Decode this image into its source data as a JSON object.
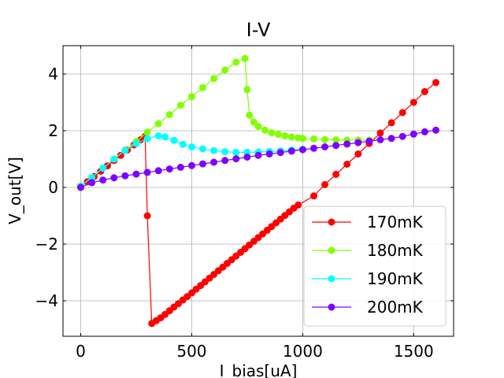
{
  "chart_data": {
    "type": "line",
    "title": "I-V",
    "xlabel": "I_bias[uA]",
    "ylabel": "V_out[V]",
    "xlim": [
      -80,
      1680
    ],
    "ylim": [
      -5.25,
      5.0
    ],
    "xticks": [
      0,
      500,
      1000,
      1500
    ],
    "yticks": [
      -4,
      -2,
      0,
      2,
      4
    ],
    "xtick_labels": [
      "0",
      "500",
      "1000",
      "1500"
    ],
    "ytick_labels": [
      "−4",
      "−2",
      "0",
      "2",
      "4"
    ],
    "grid": true,
    "legend_position": "lower-right",
    "series": [
      {
        "name": "170mK",
        "color": "#ff0000",
        "points": [
          [
            0,
            0.05
          ],
          [
            30,
            0.2
          ],
          [
            60,
            0.38
          ],
          [
            90,
            0.57
          ],
          [
            120,
            0.76
          ],
          [
            150,
            0.95
          ],
          [
            180,
            1.13
          ],
          [
            210,
            1.32
          ],
          [
            240,
            1.5
          ],
          [
            270,
            1.68
          ],
          [
            290,
            1.8
          ],
          [
            300,
            -1.0
          ],
          [
            320,
            -4.8
          ],
          [
            340,
            -4.7
          ],
          [
            360,
            -4.6
          ],
          [
            380,
            -4.48
          ],
          [
            400,
            -4.35
          ],
          [
            420,
            -4.22
          ],
          [
            440,
            -4.1
          ],
          [
            460,
            -3.97
          ],
          [
            480,
            -3.85
          ],
          [
            500,
            -3.72
          ],
          [
            520,
            -3.59
          ],
          [
            540,
            -3.46
          ],
          [
            560,
            -3.33
          ],
          [
            580,
            -3.2
          ],
          [
            600,
            -3.07
          ],
          [
            620,
            -2.94
          ],
          [
            640,
            -2.81
          ],
          [
            660,
            -2.68
          ],
          [
            680,
            -2.55
          ],
          [
            700,
            -2.42
          ],
          [
            720,
            -2.29
          ],
          [
            740,
            -2.16
          ],
          [
            760,
            -2.03
          ],
          [
            780,
            -1.9
          ],
          [
            800,
            -1.77
          ],
          [
            820,
            -1.64
          ],
          [
            840,
            -1.51
          ],
          [
            860,
            -1.38
          ],
          [
            880,
            -1.25
          ],
          [
            900,
            -1.12
          ],
          [
            920,
            -0.99
          ],
          [
            940,
            -0.86
          ],
          [
            960,
            -0.73
          ],
          [
            980,
            -0.62
          ],
          [
            1050,
            -0.3
          ],
          [
            1100,
            0.1
          ],
          [
            1150,
            0.46
          ],
          [
            1200,
            0.82
          ],
          [
            1250,
            1.18
          ],
          [
            1300,
            1.55
          ],
          [
            1350,
            1.92
          ],
          [
            1400,
            2.28
          ],
          [
            1450,
            2.64
          ],
          [
            1500,
            3.0
          ],
          [
            1550,
            3.38
          ],
          [
            1600,
            3.7
          ]
        ]
      },
      {
        "name": "180mK",
        "color": "#80ff00",
        "points": [
          [
            0,
            0.05
          ],
          [
            50,
            0.35
          ],
          [
            100,
            0.68
          ],
          [
            150,
            1.0
          ],
          [
            200,
            1.32
          ],
          [
            250,
            1.62
          ],
          [
            300,
            1.95
          ],
          [
            350,
            2.25
          ],
          [
            400,
            2.57
          ],
          [
            450,
            2.9
          ],
          [
            500,
            3.2
          ],
          [
            550,
            3.52
          ],
          [
            600,
            3.84
          ],
          [
            650,
            4.14
          ],
          [
            700,
            4.42
          ],
          [
            740,
            4.55
          ],
          [
            750,
            3.45
          ],
          [
            760,
            2.55
          ],
          [
            780,
            2.3
          ],
          [
            800,
            2.15
          ],
          [
            830,
            2.02
          ],
          [
            860,
            1.93
          ],
          [
            890,
            1.87
          ],
          [
            920,
            1.82
          ],
          [
            950,
            1.78
          ],
          [
            980,
            1.75
          ],
          [
            1000,
            1.73
          ],
          [
            1050,
            1.71
          ],
          [
            1100,
            1.69
          ],
          [
            1150,
            1.68
          ],
          [
            1200,
            1.67
          ],
          [
            1250,
            1.67
          ],
          [
            1300,
            1.67
          ]
        ]
      },
      {
        "name": "190mK",
        "color": "#00ffff",
        "points": [
          [
            0,
            0.05
          ],
          [
            50,
            0.35
          ],
          [
            100,
            0.68
          ],
          [
            150,
            1.0
          ],
          [
            200,
            1.3
          ],
          [
            250,
            1.55
          ],
          [
            300,
            1.72
          ],
          [
            350,
            1.82
          ],
          [
            380,
            1.78
          ],
          [
            420,
            1.66
          ],
          [
            460,
            1.52
          ],
          [
            500,
            1.43
          ],
          [
            550,
            1.36
          ],
          [
            600,
            1.3
          ],
          [
            650,
            1.26
          ],
          [
            700,
            1.24
          ],
          [
            750,
            1.24
          ],
          [
            800,
            1.25
          ],
          [
            850,
            1.27
          ],
          [
            900,
            1.29
          ],
          [
            950,
            1.32
          ],
          [
            1000,
            1.35
          ]
        ]
      },
      {
        "name": "200mK",
        "color": "#7f00ff",
        "points": [
          [
            0,
            0.0
          ],
          [
            50,
            0.17
          ],
          [
            100,
            0.26
          ],
          [
            150,
            0.34
          ],
          [
            200,
            0.41
          ],
          [
            250,
            0.47
          ],
          [
            300,
            0.53
          ],
          [
            350,
            0.59
          ],
          [
            400,
            0.65
          ],
          [
            450,
            0.71
          ],
          [
            500,
            0.77
          ],
          [
            550,
            0.83
          ],
          [
            600,
            0.89
          ],
          [
            650,
            0.95
          ],
          [
            700,
            1.01
          ],
          [
            750,
            1.07
          ],
          [
            800,
            1.13
          ],
          [
            850,
            1.18
          ],
          [
            900,
            1.23
          ],
          [
            950,
            1.28
          ],
          [
            1000,
            1.33
          ],
          [
            1050,
            1.38
          ],
          [
            1100,
            1.43
          ],
          [
            1150,
            1.48
          ],
          [
            1200,
            1.53
          ],
          [
            1250,
            1.58
          ],
          [
            1300,
            1.63
          ],
          [
            1350,
            1.68
          ],
          [
            1400,
            1.73
          ],
          [
            1450,
            1.8
          ],
          [
            1500,
            1.88
          ],
          [
            1550,
            1.96
          ],
          [
            1600,
            2.02
          ]
        ]
      }
    ]
  }
}
